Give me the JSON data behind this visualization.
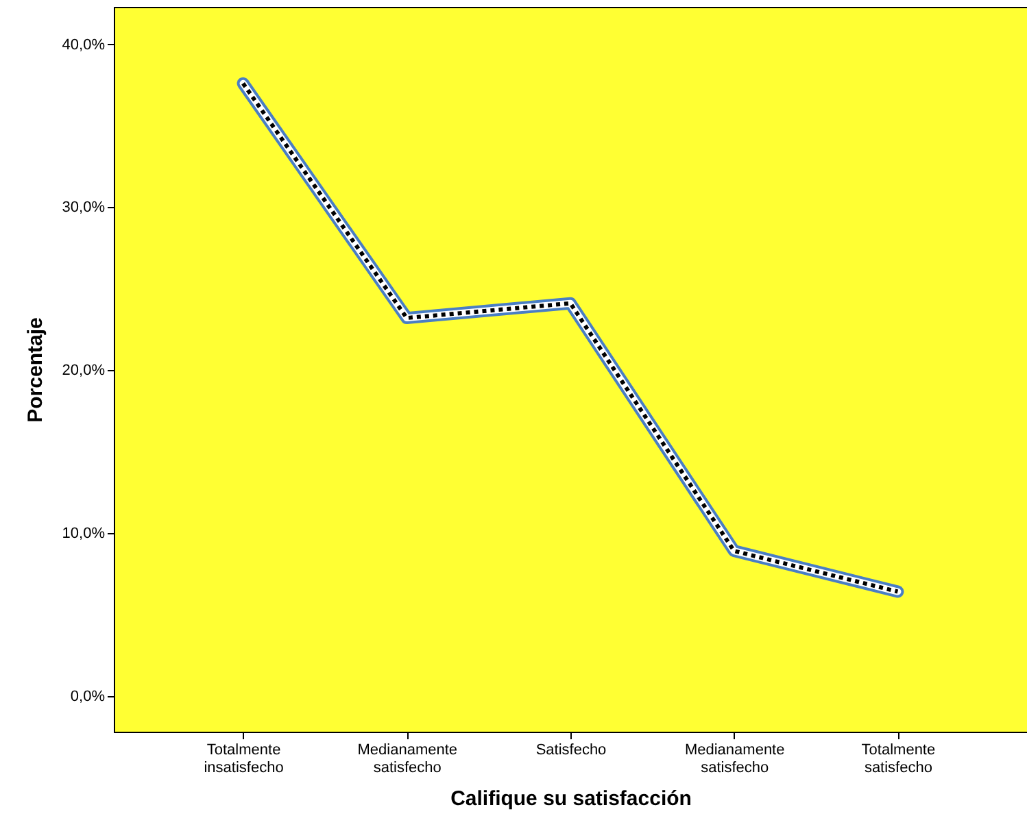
{
  "chart_data": {
    "type": "line",
    "xlabel": "Califique su satisfacción",
    "ylabel": "Porcentaje",
    "categories": [
      "Totalmente insatisfecho",
      "Medianamente satisfecho",
      "Satisfecho",
      "Medianamente satisfecho",
      "Totalmente satisfecho"
    ],
    "series": [
      {
        "color": "#000000",
        "values": [
          37.6,
          23.2,
          24.1,
          8.9,
          6.4
        ]
      }
    ],
    "ylim": [
      -2.2,
      42.3
    ],
    "yticks": [
      {
        "value": 0,
        "label": "0,0%"
      },
      {
        "value": 10,
        "label": "10,0%"
      },
      {
        "value": 20,
        "label": "20,0%"
      },
      {
        "value": 30,
        "label": "30,0%"
      },
      {
        "value": 40,
        "label": "40,0%"
      }
    ],
    "line_style": "dotted",
    "grid": false
  }
}
